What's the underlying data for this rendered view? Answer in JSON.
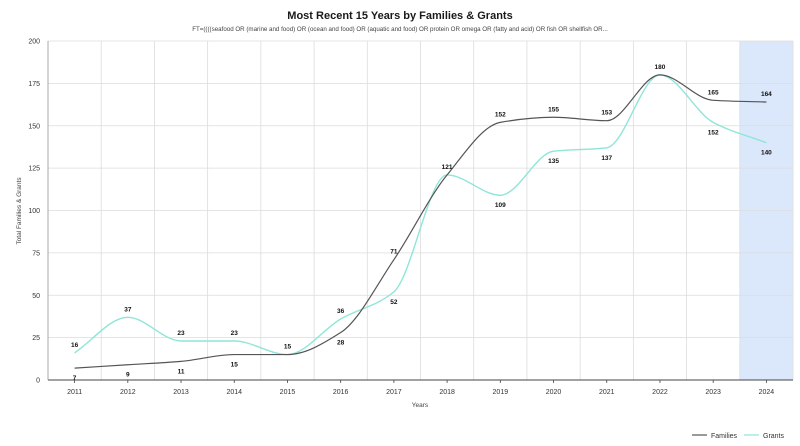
{
  "chart_data": {
    "type": "line",
    "title": "Most Recent 15 Years by Families & Grants",
    "subtitle": "FT=((((seafood OR (marine and food) OR (ocean and food) OR (aquatic and food) OR protein OR omega OR (fatty and acid) OR fish OR shellfish OR...",
    "xlabel": "Years",
    "ylabel": "Total Families & Grants",
    "categories": [
      "2011",
      "2012",
      "2013",
      "2014",
      "2015",
      "2016",
      "2017",
      "2018",
      "2019",
      "2020",
      "2021",
      "2022",
      "2023",
      "2024"
    ],
    "y_ticks": [
      "0",
      "25",
      "50",
      "75",
      "100",
      "125",
      "150",
      "175",
      "200"
    ],
    "ylim": [
      0,
      200
    ],
    "grid": true,
    "legend_position": "bottom-right",
    "highlighted_category": "2024",
    "series": [
      {
        "name": "Families",
        "color": "#555555",
        "values": [
          7,
          9,
          11,
          15,
          15,
          28,
          71,
          121,
          152,
          155,
          153,
          180,
          165,
          164
        ]
      },
      {
        "name": "Grants",
        "color": "#8ee6d8",
        "values": [
          16,
          37,
          23,
          23,
          15,
          36,
          52,
          121,
          109,
          135,
          137,
          180,
          152,
          140
        ]
      }
    ],
    "data_labels": [
      {
        "series": "Grants",
        "index": 0,
        "text": "16"
      },
      {
        "series": "Families",
        "index": 0,
        "text": "7"
      },
      {
        "series": "Grants",
        "index": 1,
        "text": "37"
      },
      {
        "series": "Families",
        "index": 1,
        "text": "9"
      },
      {
        "series": "Grants",
        "index": 2,
        "text": "23"
      },
      {
        "series": "Families",
        "index": 2,
        "text": "11"
      },
      {
        "series": "Grants",
        "index": 3,
        "text": "23"
      },
      {
        "series": "Families",
        "index": 3,
        "text": "15"
      },
      {
        "series": "Grants",
        "index": 4,
        "text": "15"
      },
      {
        "series": "Grants",
        "index": 5,
        "text": "36"
      },
      {
        "series": "Families",
        "index": 5,
        "text": "28"
      },
      {
        "series": "Families",
        "index": 6,
        "text": "71"
      },
      {
        "series": "Grants",
        "index": 6,
        "text": "52"
      },
      {
        "series": "Families",
        "index": 7,
        "text": "121"
      },
      {
        "series": "Families",
        "index": 8,
        "text": "152"
      },
      {
        "series": "Grants",
        "index": 8,
        "text": "109"
      },
      {
        "series": "Families",
        "index": 9,
        "text": "155"
      },
      {
        "series": "Grants",
        "index": 9,
        "text": "135"
      },
      {
        "series": "Families",
        "index": 10,
        "text": "153"
      },
      {
        "series": "Grants",
        "index": 10,
        "text": "137"
      },
      {
        "series": "Families",
        "index": 11,
        "text": "180"
      },
      {
        "series": "Families",
        "index": 12,
        "text": "165"
      },
      {
        "series": "Grants",
        "index": 12,
        "text": "152"
      },
      {
        "series": "Families",
        "index": 13,
        "text": "164"
      },
      {
        "series": "Grants",
        "index": 13,
        "text": "140"
      }
    ]
  }
}
